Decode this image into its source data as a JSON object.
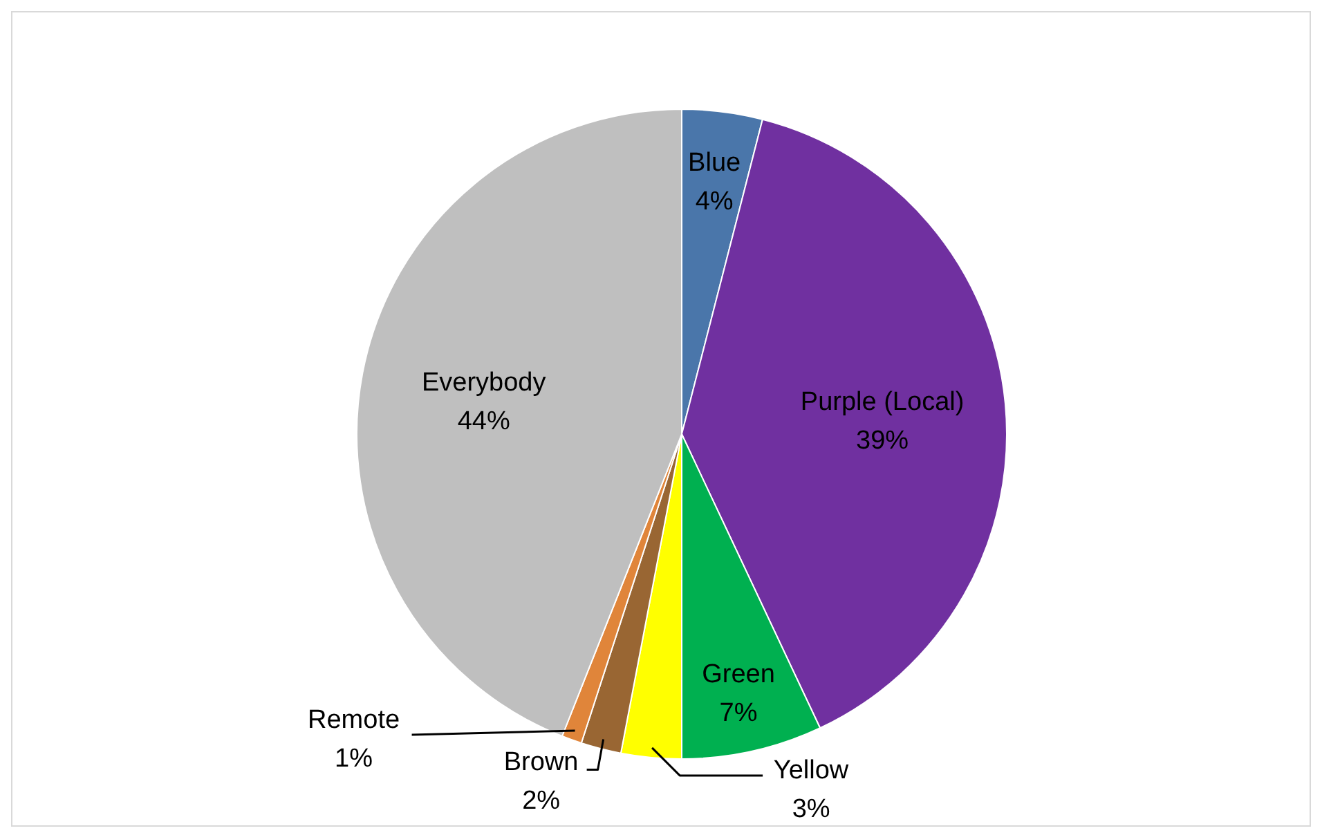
{
  "chart_data": {
    "type": "pie",
    "categories": [
      "Blue",
      "Purple (Local)",
      "Green",
      "Yellow",
      "Brown",
      "Remote",
      "Everybody"
    ],
    "values": [
      4,
      39,
      7,
      3,
      2,
      1,
      44
    ],
    "colors": [
      "#4a76aa",
      "#7030a0",
      "#00b050",
      "#ffff00",
      "#996633",
      "#e0853a",
      "#bfbfbf"
    ],
    "value_labels": [
      "4%",
      "39%",
      "7%",
      "3%",
      "2%",
      "1%",
      "44%"
    ],
    "legend": false
  }
}
